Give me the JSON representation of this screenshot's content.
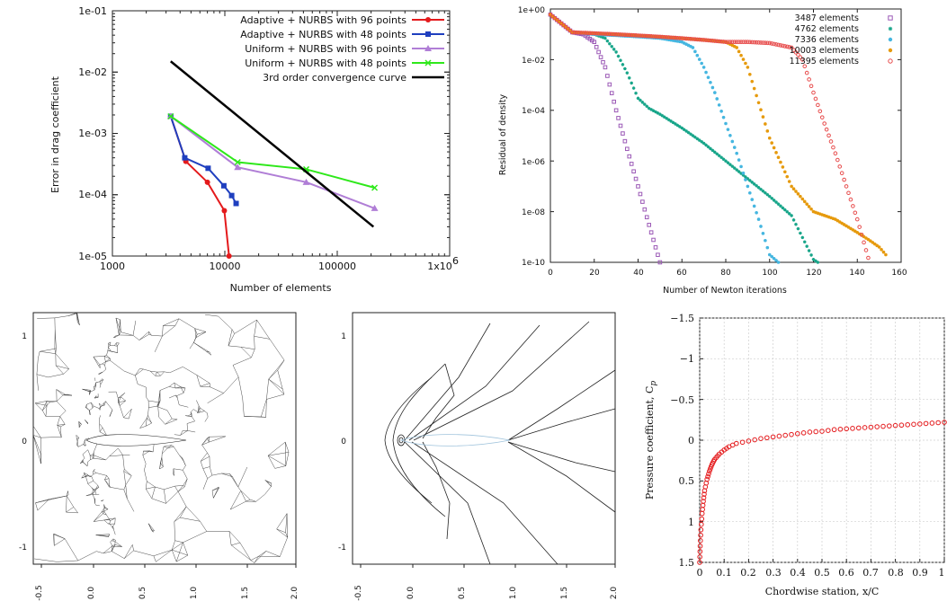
{
  "chart_data": [
    {
      "type": "line",
      "log_x": true,
      "log_y": true,
      "xlabel": "Number of elements",
      "ylabel": "Error in drag coefficient",
      "xlim": [
        1000,
        1000000
      ],
      "ylim": [
        1e-05,
        0.1
      ],
      "x_ticks": [
        1000,
        10000,
        100000,
        1000000
      ],
      "x_tick_labels": [
        "1000",
        "10000",
        "100000",
        "1x10"
      ],
      "x_tick_exponent": "6",
      "y_ticks": [
        1e-05,
        0.0001,
        0.001,
        0.01,
        0.1
      ],
      "y_tick_labels": [
        "1e-05",
        "1e-04",
        "1e-03",
        "1e-02",
        "1e-01"
      ],
      "legend_position": "top-right",
      "series": [
        {
          "name": "Adaptive + NURBS with 96 points",
          "color": "#e41a1c",
          "marker": "circle",
          "x": [
            3300,
            4500,
            7000,
            9900,
            10900
          ],
          "y": [
            0.0019,
            0.00035,
            0.00016,
            5.5e-05,
            1e-05
          ]
        },
        {
          "name": "Adaptive + NURBS with 48 points",
          "color": "#1f3fbf",
          "marker": "square",
          "x": [
            3300,
            4400,
            7100,
            9800,
            11500,
            12600
          ],
          "y": [
            0.0019,
            0.0004,
            0.00027,
            0.00014,
            9.7e-05,
            7.2e-05
          ]
        },
        {
          "name": "Uniform + NURBS with 96 points",
          "color": "#b07ed6",
          "marker": "triangle",
          "x": [
            3300,
            13000,
            53000,
            215000
          ],
          "y": [
            0.0019,
            0.00028,
            0.00016,
            6e-05
          ]
        },
        {
          "name": "Uniform + NURBS with 48 points",
          "color": "#2ee81a",
          "marker": "x",
          "x": [
            3300,
            13000,
            53000,
            215000
          ],
          "y": [
            0.0019,
            0.00034,
            0.00026,
            0.00013
          ]
        },
        {
          "name": "3rd order convergence curve",
          "color": "#000000",
          "marker": "none",
          "x": [
            3300,
            210000
          ],
          "y": [
            0.015,
            3e-05
          ]
        }
      ]
    },
    {
      "type": "scatter",
      "log_y": true,
      "xlabel": "Number of Newton iterations",
      "ylabel": "Residual of density",
      "xlim": [
        0,
        160
      ],
      "ylim": [
        1e-10,
        1
      ],
      "x_ticks": [
        0,
        20,
        40,
        60,
        80,
        100,
        120,
        140,
        160
      ],
      "x_tick_labels": [
        "0",
        "20",
        "40",
        "60",
        "80",
        "100",
        "120",
        "140",
        "160"
      ],
      "y_ticks": [
        1e-10,
        1e-08,
        1e-06,
        0.0001,
        0.01,
        1
      ],
      "y_tick_labels": [
        "1e-10",
        "1e-08",
        "1e-06",
        "1e-04",
        "1e-02",
        "1e+00"
      ],
      "legend_position": "top-right",
      "series": [
        {
          "name": "3487 elements",
          "color": "#9b59b6",
          "marker": "square-open",
          "x": [
            0,
            10,
            15,
            20,
            25,
            30,
            35,
            40,
            45,
            50
          ],
          "y": [
            0.6,
            0.12,
            0.1,
            0.05,
            0.005,
            0.0001,
            3e-06,
            1e-07,
            3e-09,
            1e-10
          ]
        },
        {
          "name": "4762 elements",
          "color": "#17a589",
          "marker": "star",
          "x": [
            0,
            10,
            20,
            25,
            30,
            35,
            40,
            45,
            50,
            60,
            70,
            80,
            90,
            100,
            110,
            120,
            122
          ],
          "y": [
            0.6,
            0.12,
            0.1,
            0.07,
            0.02,
            0.003,
            0.0003,
            0.00012,
            7e-05,
            2e-05,
            5e-06,
            1e-06,
            2e-07,
            4e-08,
            7e-09,
            1.3e-10,
            1e-10
          ]
        },
        {
          "name": "7336 elements",
          "color": "#45b6e0",
          "marker": "circle-filled",
          "x": [
            0,
            10,
            20,
            30,
            40,
            50,
            60,
            65,
            70,
            75,
            80,
            85,
            90,
            95,
            100,
            104
          ],
          "y": [
            0.6,
            0.12,
            0.1,
            0.09,
            0.08,
            0.07,
            0.05,
            0.03,
            0.005,
            0.0005,
            3e-05,
            2e-06,
            1e-07,
            5e-09,
            2e-10,
            1e-10
          ]
        },
        {
          "name": "10003 elements",
          "color": "#e69a0d",
          "marker": "circle-filled",
          "x": [
            0,
            10,
            20,
            30,
            40,
            50,
            60,
            70,
            80,
            85,
            90,
            95,
            100,
            110,
            120,
            130,
            140,
            145,
            150,
            153
          ],
          "y": [
            0.6,
            0.12,
            0.11,
            0.1,
            0.09,
            0.08,
            0.07,
            0.06,
            0.05,
            0.03,
            0.005,
            0.0002,
            8e-06,
            1e-07,
            1e-08,
            5e-09,
            1.5e-09,
            8e-10,
            4e-10,
            2e-10
          ]
        },
        {
          "name": "11395 elements",
          "color": "#e74c4c",
          "marker": "circle-open",
          "x": [
            0,
            10,
            20,
            30,
            40,
            50,
            60,
            70,
            80,
            90,
            100,
            110,
            115,
            120,
            125,
            130,
            135,
            140,
            145
          ],
          "y": [
            0.6,
            0.12,
            0.11,
            0.1,
            0.09,
            0.08,
            0.07,
            0.06,
            0.05,
            0.05,
            0.045,
            0.03,
            0.01,
            0.0005,
            3e-05,
            2e-06,
            1e-07,
            5e-09,
            1.5e-10
          ]
        }
      ]
    },
    {
      "type": "line",
      "description": "figure: unstructured triangular mesh around airfoil",
      "xlim": [
        -0.5,
        2.0
      ],
      "ylim": [
        -1.2,
        1.2
      ],
      "x_ticks": [
        -0.5,
        0,
        0.5,
        1,
        1.5,
        2
      ],
      "x_tick_labels": [
        "-0.5",
        "0.0",
        "0.5",
        "1.0",
        "1.5",
        "2.0"
      ],
      "y_ticks": [
        1,
        0,
        -1
      ],
      "y_tick_labels": [
        "1",
        "0",
        "-1"
      ]
    },
    {
      "type": "line",
      "description": "figure: iso-contour lines around airfoil",
      "xlim": [
        -0.5,
        2.0
      ],
      "ylim": [
        -1.2,
        1.2
      ],
      "x_ticks": [
        -0.5,
        0,
        0.5,
        1,
        1.5,
        2
      ],
      "x_tick_labels": [
        "-0.5",
        "0.0",
        "0.5",
        "1.0",
        "1.5",
        "2.0"
      ],
      "y_ticks": [
        1,
        0,
        -1
      ],
      "y_tick_labels": [
        "1",
        "0",
        "-1"
      ]
    },
    {
      "type": "scatter",
      "xlabel": "Chordwise station, x/C",
      "ylabel": "Pressure coefficient, C",
      "ylabel_subscript": "p",
      "y_inverted": true,
      "xlim": [
        0,
        1
      ],
      "ylim": [
        -1.5,
        1.5
      ],
      "x_ticks": [
        0,
        0.1,
        0.2,
        0.3,
        0.4,
        0.5,
        0.6,
        0.7,
        0.8,
        0.9,
        1
      ],
      "x_tick_labels": [
        "0",
        "0.1",
        "0.2",
        "0.3",
        "0.4",
        "0.5",
        "0.6",
        "0.7",
        "0.8",
        "0.9",
        "1"
      ],
      "y_ticks": [
        -1.5,
        -1,
        -0.5,
        0,
        0.5,
        1,
        1.5
      ],
      "y_tick_labels": [
        "−1.5",
        "−1",
        "−0.5",
        "0",
        "0.5",
        "1",
        "1.5"
      ],
      "series": [
        {
          "name": "",
          "color": "#e41a1c",
          "marker": "circle-open",
          "x": [
            0.0,
            0.002,
            0.005,
            0.01,
            0.015,
            0.02,
            0.03,
            0.04,
            0.05,
            0.06,
            0.08,
            0.1,
            0.12,
            0.15,
            0.2,
            0.25,
            0.3,
            0.35,
            0.4,
            0.45,
            0.5,
            0.55,
            0.6,
            0.65,
            0.7,
            0.75,
            0.8,
            0.85,
            0.9,
            0.95,
            1.0
          ],
          "y": [
            1.5,
            1.3,
            1.1,
            0.9,
            0.75,
            0.62,
            0.48,
            0.38,
            0.3,
            0.24,
            0.17,
            0.12,
            0.08,
            0.04,
            0.01,
            -0.02,
            -0.04,
            -0.06,
            -0.08,
            -0.1,
            -0.11,
            -0.13,
            -0.14,
            -0.15,
            -0.16,
            -0.17,
            -0.18,
            -0.19,
            -0.2,
            -0.21,
            -0.22
          ]
        }
      ]
    }
  ]
}
